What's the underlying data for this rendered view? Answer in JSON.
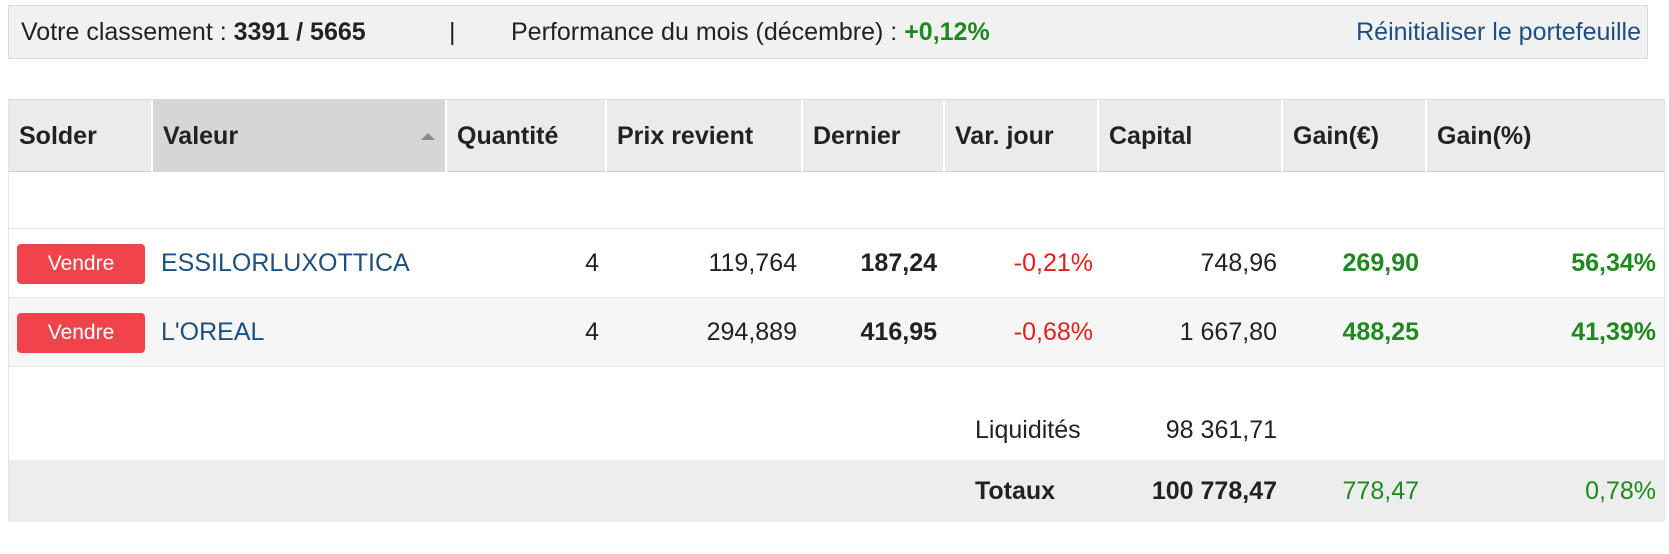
{
  "topbar": {
    "rank_label": "Votre classement : ",
    "rank_value": "3391 / 5665",
    "separator": "|",
    "perf_label": "Performance du mois (décembre) : ",
    "perf_value": "+0,12%",
    "reset_link": "Réinitialiser le portefeuille"
  },
  "table": {
    "headers": {
      "solder": "Solder",
      "valeur": "Valeur",
      "quantite": "Quantité",
      "prix_revient": "Prix revient",
      "dernier": "Dernier",
      "var_jour": "Var. jour",
      "capital": "Capital",
      "gain_eur": "Gain(€)",
      "gain_pct": "Gain(%)"
    },
    "rows": [
      {
        "action": "Vendre",
        "valeur": "ESSILORLUXOTTICA",
        "quantite": "4",
        "prix_revient": "119,764",
        "dernier": "187,24",
        "var_jour": "-0,21%",
        "capital": "748,96",
        "gain_eur": "269,90",
        "gain_pct": "56,34%"
      },
      {
        "action": "Vendre",
        "valeur": "L'OREAL",
        "quantite": "4",
        "prix_revient": "294,889",
        "dernier": "416,95",
        "var_jour": "-0,68%",
        "capital": "1 667,80",
        "gain_eur": "488,25",
        "gain_pct": "41,39%"
      }
    ],
    "liquidites": {
      "label": "Liquidités",
      "capital": "98 361,71"
    },
    "totaux": {
      "label": "Totaux",
      "capital": "100 778,47",
      "gain_eur": "778,47",
      "gain_pct": "0,78%"
    }
  },
  "colors": {
    "sell_button": "#f0444c",
    "positive": "#1e8a1e",
    "negative": "#e0201c",
    "link": "#1d4f80"
  },
  "icons": {
    "sort": "sort-ascending-icon"
  }
}
